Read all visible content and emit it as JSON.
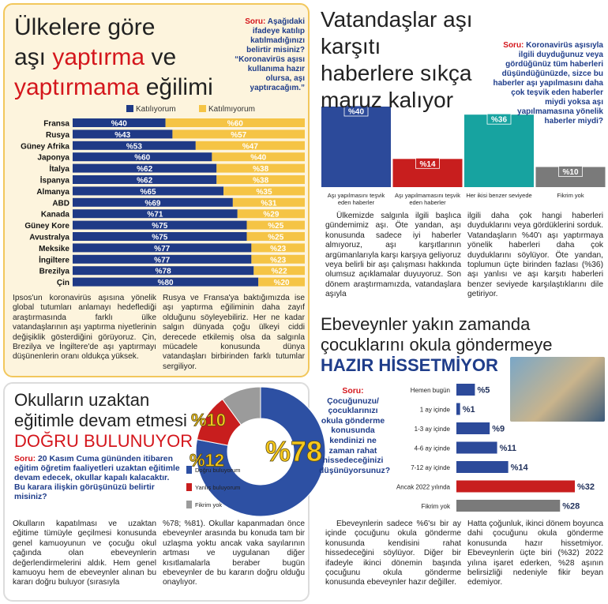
{
  "chart_data": [
    {
      "type": "stacked_bar_h",
      "title": [
        "Ülkelere göre",
        "aşı",
        "yaptırma",
        "ve",
        "yaptırmama",
        "eğilimi"
      ],
      "question_label": "Soru:",
      "question": "Aşağıdaki ifadeye katılıp katılmadığınızı belirtir misiniz? “Koronavirüs aşısı kullanıma hazır olursa, aşı yaptıracağım.”",
      "categories": [
        "Fransa",
        "Rusya",
        "Güney Afrika",
        "Japonya",
        "İtalya",
        "İspanya",
        "Almanya",
        "ABD",
        "Kanada",
        "Güney Kore",
        "Avustralya",
        "Meksike",
        "İngiltere",
        "Brezilya",
        "Çin"
      ],
      "series": [
        {
          "name": "Katılıyorum",
          "color": "#1f3a86",
          "values": [
            40,
            43,
            53,
            60,
            62,
            62,
            65,
            69,
            71,
            75,
            75,
            77,
            77,
            78,
            80
          ],
          "value_labels": [
            "%40",
            "%43",
            "%53",
            "%60",
            "%62",
            "%62",
            "%65",
            "%69",
            "%71",
            "%75",
            "%75",
            "%77",
            "%77",
            "%78",
            "%80"
          ]
        },
        {
          "name": "Katılmıyorum",
          "color": "#f5c445",
          "values": [
            60,
            57,
            47,
            40,
            38,
            38,
            35,
            31,
            29,
            25,
            25,
            23,
            23,
            22,
            20
          ],
          "value_labels": [
            "%60",
            "%57",
            "%47",
            "%40",
            "%38",
            "%38",
            "%35",
            "%31",
            "%29",
            "%25",
            "%25",
            "%23",
            "%23",
            "%22",
            "%20"
          ]
        }
      ]
    },
    {
      "type": "bar",
      "title": [
        "Vatandaşlar aşı karşıtı",
        "haberlere sıkça",
        "maruz kalıyor"
      ],
      "question_label": "Soru:",
      "question": "Koronavirüs aşısıyla ilgili duyduğunuz veya gördüğünüz tüm haberleri düşündüğünüzde, sizce bu haberler aşı yapılmasını daha çok teşvik eden haberler miydi yoksa aşı yapılmamasına yönelik haberler miydi?",
      "categories": [
        "Aşı yapılmasını teşvik eden haberler",
        "Aşı yapılmamasını teşvik eden haberler",
        "Her ikisi benzer seviyede",
        "Fikrim yok"
      ],
      "values": [
        40,
        14,
        36,
        10
      ],
      "value_labels": [
        "%40",
        "%14",
        "%36",
        "%10"
      ],
      "colors": [
        "#2c4a9a",
        "#c81e1e",
        "#17a3a0",
        "#7a7a7a"
      ]
    },
    {
      "type": "donut",
      "title": [
        "Okulların uzaktan",
        "eğitimle devam etmesi",
        "DOĞRU BULUNUYOR"
      ],
      "question_label": "Soru:",
      "question": "20 Kasım Cuma gününden itibaren eğitim öğretim faaliyetleri uzaktan eğitimle devam edecek, okullar kapalı kalacaktır. Bu karara ilişkin görüşünüzü belirtir misiniz?",
      "categories": [
        "Doğru buluyorum",
        "Yanlış buluyorum",
        "Fikrim yok"
      ],
      "values": [
        78,
        12,
        10
      ],
      "value_labels": [
        "%78",
        "%12",
        "%10"
      ],
      "colors": [
        "#2d50a3",
        "#c81e1e",
        "#9b9b9b"
      ]
    },
    {
      "type": "bar_h",
      "title": [
        "Ebeveynler yakın zamanda",
        "çocuklarını okula göndermeye",
        "HAZIR HİSSETMİYOR"
      ],
      "question_label": "Soru:",
      "question": "Çocuğunuzu/çocuklarınızı okula gönderme konusunda kendinizi ne zaman rahat hissedeceğinizi düşünüyorsunuz?",
      "categories": [
        "Hemen bugün",
        "1 ay içinde",
        "1-3 ay içinde",
        "4-6 ay içinde",
        "7-12 ay içinde",
        "Ancak 2022 yılında",
        "Fikrim yok"
      ],
      "values": [
        5,
        1,
        9,
        11,
        14,
        32,
        28
      ],
      "value_labels": [
        "%5",
        "%1",
        "%9",
        "%11",
        "%14",
        "%32",
        "%28"
      ],
      "colors": [
        "#2c4a9a",
        "#2c4a9a",
        "#2c4a9a",
        "#2c4a9a",
        "#2c4a9a",
        "#c81e1e",
        "#7a7a7a"
      ]
    }
  ],
  "articles": [
    [
      "Ipsos'un koronavirüs aşısına yönelik global tutumları anlamayı hedeflediği araştırmasında farklı ülke vatandaşlarının aşı yaptırma niyetlerinin değişiklik gösterdiğini görüyoruz. Çin, Brezilya ve İngiltere'de aşı yaptırmayı düşünenlerin oranı oldukça yüksek.",
      "Rusya ve Fransa'ya baktığımızda ise aşı yaptırma eğiliminin daha zayıf olduğunu söyleyebiliriz. Her ne kadar salgın dünyada çoğu ülkeyi ciddi derecede etkilemiş olsa da salgınla mücadele konusunda dünya vatandaşları birbirinden farklı tutumlar sergiliyor."
    ],
    [
      "Ülkemizde salgınla ilgili başlıca gündemimiz aşı. Öte yandan, aşı konusunda sadece iyi haberler almıyoruz, aşı karşıtlarının argümanlarıyla karşı karşıya geliyoruz veya belirli bir aşı çalışması hakkında olumsuz açıklamalar duyuyoruz. Son dönem araştırmamızda, vatandaşlara aşıyla",
      "ilgili daha çok hangi haberleri duyduklarını veya gördüklerini sorduk. Vatandaşların %40'ı aşı yaptırmaya yönelik haberleri daha çok duyduklarını söylüyor. Öte yandan, toplumun üçte birinden fazlası (%36) aşı yanlısı ve aşı karşıtı haberleri benzer seviyede karşılaştıklarını dile getiriyor."
    ],
    [
      "Okulların kapatılması ve uzaktan eğitime tümüyle geçilmesi konusunda genel kamuoyunun ve çocuğu okul çağında olan ebeveynlerin değerlendirmelerini aldık. Hem genel kamuoyu hem de ebeveynler alınan bu kararı doğru buluyor (sırasıyla",
      "%78; %81). Okullar kapanmadan önce ebeveynler arasında bu konuda tam bir uzlaşma yoktu ancak vaka sayılarının artması ve uygulanan diğer kısıtlamalarla beraber bugün ebeveynler de bu kararın doğru olduğu onaylıyor."
    ],
    [
      "Ebeveynlerin sadece %6'sı bir ay içinde çocuğunu okula gönderme konusunda kendisini rahat hissedeceğini söylüyor. Diğer bir ifadeyle ikinci dönemin başında çocuğunu okula gönderme konusunda ebeveynler hazır değiller.",
      "Hatta çoğunluk, ikinci dönem boyunca dahi çocuğunu okula gönderme konusunda hazır hissetmiyor. Ebeveynlerin üçte biri (%32) 2022 yılına işaret ederken, %28 aşının belirsizliği nedeniyle fikir beyan edemiyor."
    ]
  ]
}
